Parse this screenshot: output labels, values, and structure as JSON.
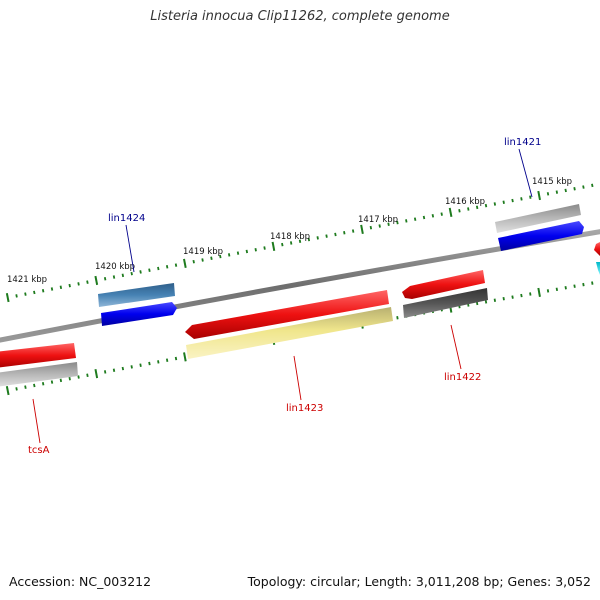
{
  "title": "Listeria innocua Clip11262, complete genome",
  "footer": {
    "accession": "Accession: NC_003212",
    "summary": "Topology: circular; Length: 3,011,208 bp; Genes: 3,052"
  },
  "ticks": [
    {
      "label": "1415 kbp"
    },
    {
      "label": "1416 kbp"
    },
    {
      "label": "1417 kbp"
    },
    {
      "label": "1418 kbp"
    },
    {
      "label": "1419 kbp"
    },
    {
      "label": "1420 kbp"
    },
    {
      "label": "1421 kbp"
    }
  ],
  "genes": [
    {
      "name": "lin1421",
      "color": "#00008b"
    },
    {
      "name": "lin1424",
      "color": "#00008b"
    },
    {
      "name": "lin1422",
      "color": "#cc0000"
    },
    {
      "name": "lin1423",
      "color": "#cc0000"
    },
    {
      "name": "tcsA",
      "color": "#cc0000"
    }
  ],
  "colors": {
    "backbone": "#7a7a7a",
    "tick": "#1e7b1e",
    "red_feature": "#ee1111",
    "blue_feature": "#0000ee",
    "steel_feature": "#4682b4",
    "gray_feature": "#b0b0b0",
    "dark_feature": "#555555",
    "yellow_feature": "#f0e68c",
    "cyan_feature": "#00e5ee"
  }
}
